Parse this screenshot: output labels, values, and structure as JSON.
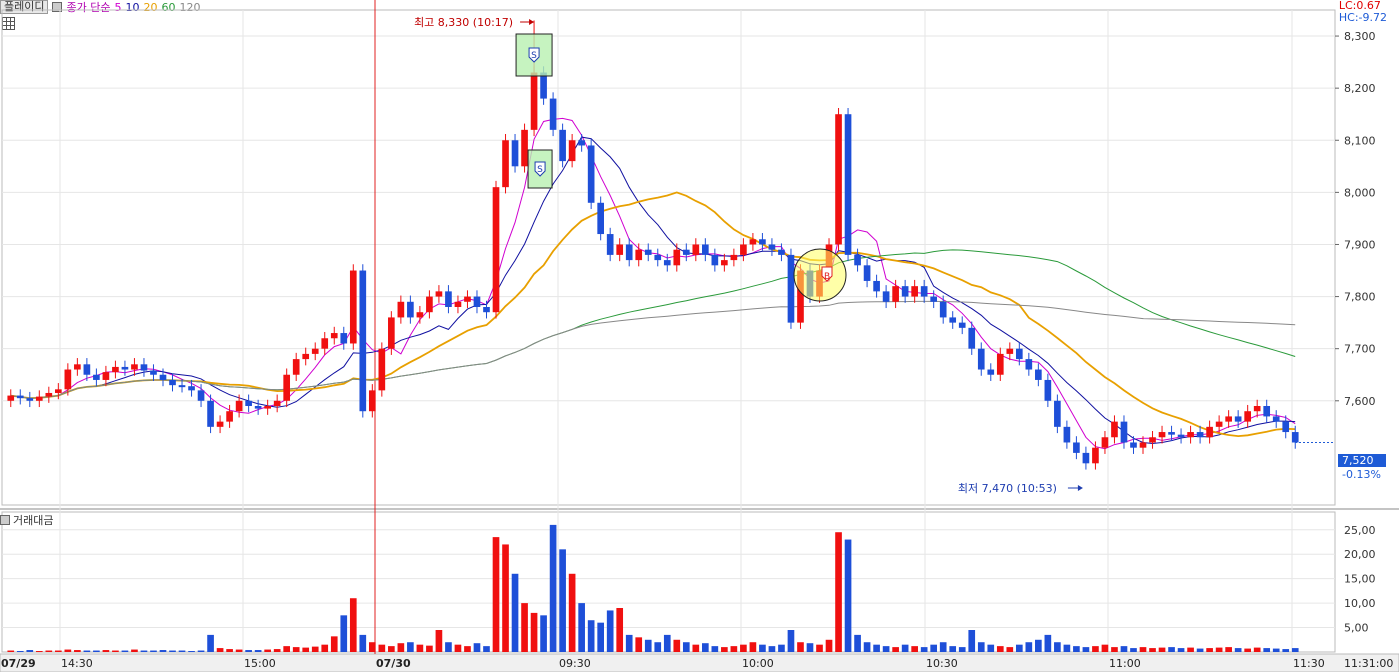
{
  "header": {
    "indicator_tag": "플레이디",
    "ma_label": "종가 단순",
    "ma_periods": [
      {
        "label": "5",
        "color": "#d000d0"
      },
      {
        "label": "10",
        "color": "#1010a0"
      },
      {
        "label": "20",
        "color": "#e8a000"
      },
      {
        "label": "60",
        "color": "#2a9a3a"
      },
      {
        "label": "120",
        "color": "#888888"
      }
    ]
  },
  "corner": {
    "lc": "LC:0.67",
    "hc": "HC:-9.72"
  },
  "current": {
    "price_label": "7,520",
    "change_label": "-0.13%"
  },
  "annotations": {
    "high_label": "최고 8,330 (10:17)",
    "low_label": "최저 7,470 (10:53)",
    "sell_marker": "S",
    "buy_marker": "B"
  },
  "volume_panel": {
    "title": "거래대금"
  },
  "colors": {
    "up": "#f01010",
    "down": "#1e4fd8",
    "grid": "#e6e6e6"
  },
  "chart_data": {
    "type": "candlestick",
    "price_axis": {
      "min": 7400,
      "max": 8350,
      "ticks": [
        8300,
        8200,
        8100,
        8000,
        7900,
        7800,
        7700,
        7600
      ],
      "tick_labels": [
        "8,300",
        "8,200",
        "8,100",
        "8,000",
        "7,900",
        "7,800",
        "7,700",
        "7,600"
      ]
    },
    "volume_axis": {
      "min": 0,
      "max": 27,
      "ticks": [
        25,
        20,
        15,
        10,
        5
      ],
      "tick_labels": [
        "25,00",
        "20,00",
        "15,00",
        "10,00",
        "5,00"
      ]
    },
    "time_labels": [
      "07/29",
      "14:30",
      "15:00",
      "07/30",
      "09:30",
      "10:00",
      "10:30",
      "11:00",
      "11:30",
      "11:31:00"
    ],
    "session_divider_label": "07/30",
    "series_ma": [
      "5",
      "10",
      "20",
      "60",
      "120"
    ],
    "candles_close": [
      7610,
      7605,
      7600,
      7608,
      7615,
      7622,
      7660,
      7670,
      7650,
      7640,
      7655,
      7665,
      7660,
      7670,
      7658,
      7650,
      7640,
      7630,
      7628,
      7620,
      7600,
      7550,
      7560,
      7580,
      7600,
      7590,
      7585,
      7590,
      7600,
      7650,
      7680,
      7690,
      7700,
      7720,
      7730,
      7710,
      7850,
      7580,
      7620,
      7700,
      7760,
      7790,
      7760,
      7770,
      7800,
      7810,
      7780,
      7790,
      7800,
      7780,
      7770,
      8010,
      8100,
      8050,
      8120,
      8230,
      8180,
      8120,
      8060,
      8100,
      8090,
      7980,
      7920,
      7880,
      7900,
      7870,
      7890,
      7880,
      7870,
      7860,
      7890,
      7880,
      7900,
      7880,
      7860,
      7870,
      7880,
      7900,
      7910,
      7900,
      7890,
      7880,
      7750,
      7850,
      7800,
      7850,
      7900,
      8150,
      7880,
      7860,
      7830,
      7810,
      7790,
      7820,
      7800,
      7820,
      7800,
      7790,
      7760,
      7750,
      7740,
      7700,
      7660,
      7650,
      7690,
      7700,
      7680,
      7660,
      7640,
      7600,
      7550,
      7520,
      7500,
      7480,
      7510,
      7530,
      7560,
      7520,
      7510,
      7520,
      7530,
      7540,
      7535,
      7530,
      7540,
      7530,
      7550,
      7560,
      7570,
      7560,
      7580,
      7590,
      7570,
      7560,
      7540,
      7520
    ],
    "volumes": [
      0.3,
      0.2,
      0.4,
      0.2,
      0.3,
      0.3,
      0.5,
      0.4,
      0.3,
      0.3,
      0.4,
      0.3,
      0.3,
      0.5,
      0.3,
      0.3,
      0.4,
      0.3,
      0.3,
      0.2,
      0.3,
      3.5,
      0.8,
      0.6,
      0.5,
      0.4,
      0.4,
      0.5,
      0.6,
      1.2,
      1.0,
      0.9,
      1.1,
      1.5,
      3.2,
      7.5,
      11.0,
      3.5,
      2.0,
      1.5,
      1.2,
      1.8,
      2.0,
      1.5,
      1.3,
      4.5,
      2.0,
      1.5,
      1.2,
      1.8,
      1.2,
      23.5,
      22.0,
      16.0,
      10.0,
      8.0,
      7.5,
      26.0,
      21.0,
      16.0,
      10.0,
      6.5,
      6.0,
      8.5,
      9.0,
      3.5,
      3.0,
      2.5,
      2.0,
      3.5,
      2.5,
      2.0,
      1.5,
      1.8,
      1.2,
      1.0,
      1.2,
      1.5,
      2.0,
      1.5,
      1.2,
      1.5,
      4.5,
      2.0,
      1.8,
      1.5,
      2.5,
      24.5,
      23.0,
      3.5,
      2.0,
      1.5,
      1.2,
      1.0,
      1.5,
      1.2,
      1.0,
      1.5,
      2.0,
      1.2,
      1.0,
      4.5,
      2.0,
      1.5,
      1.2,
      1.0,
      1.5,
      2.0,
      2.5,
      3.5,
      2.0,
      1.5,
      1.2,
      1.0,
      1.2,
      1.5,
      1.0,
      1.2,
      0.8,
      1.0,
      0.8,
      0.9,
      1.0,
      0.8,
      0.9,
      0.7,
      0.8,
      0.9,
      1.0,
      0.8,
      0.7,
      0.9,
      0.8,
      0.7,
      0.6,
      0.8
    ]
  }
}
